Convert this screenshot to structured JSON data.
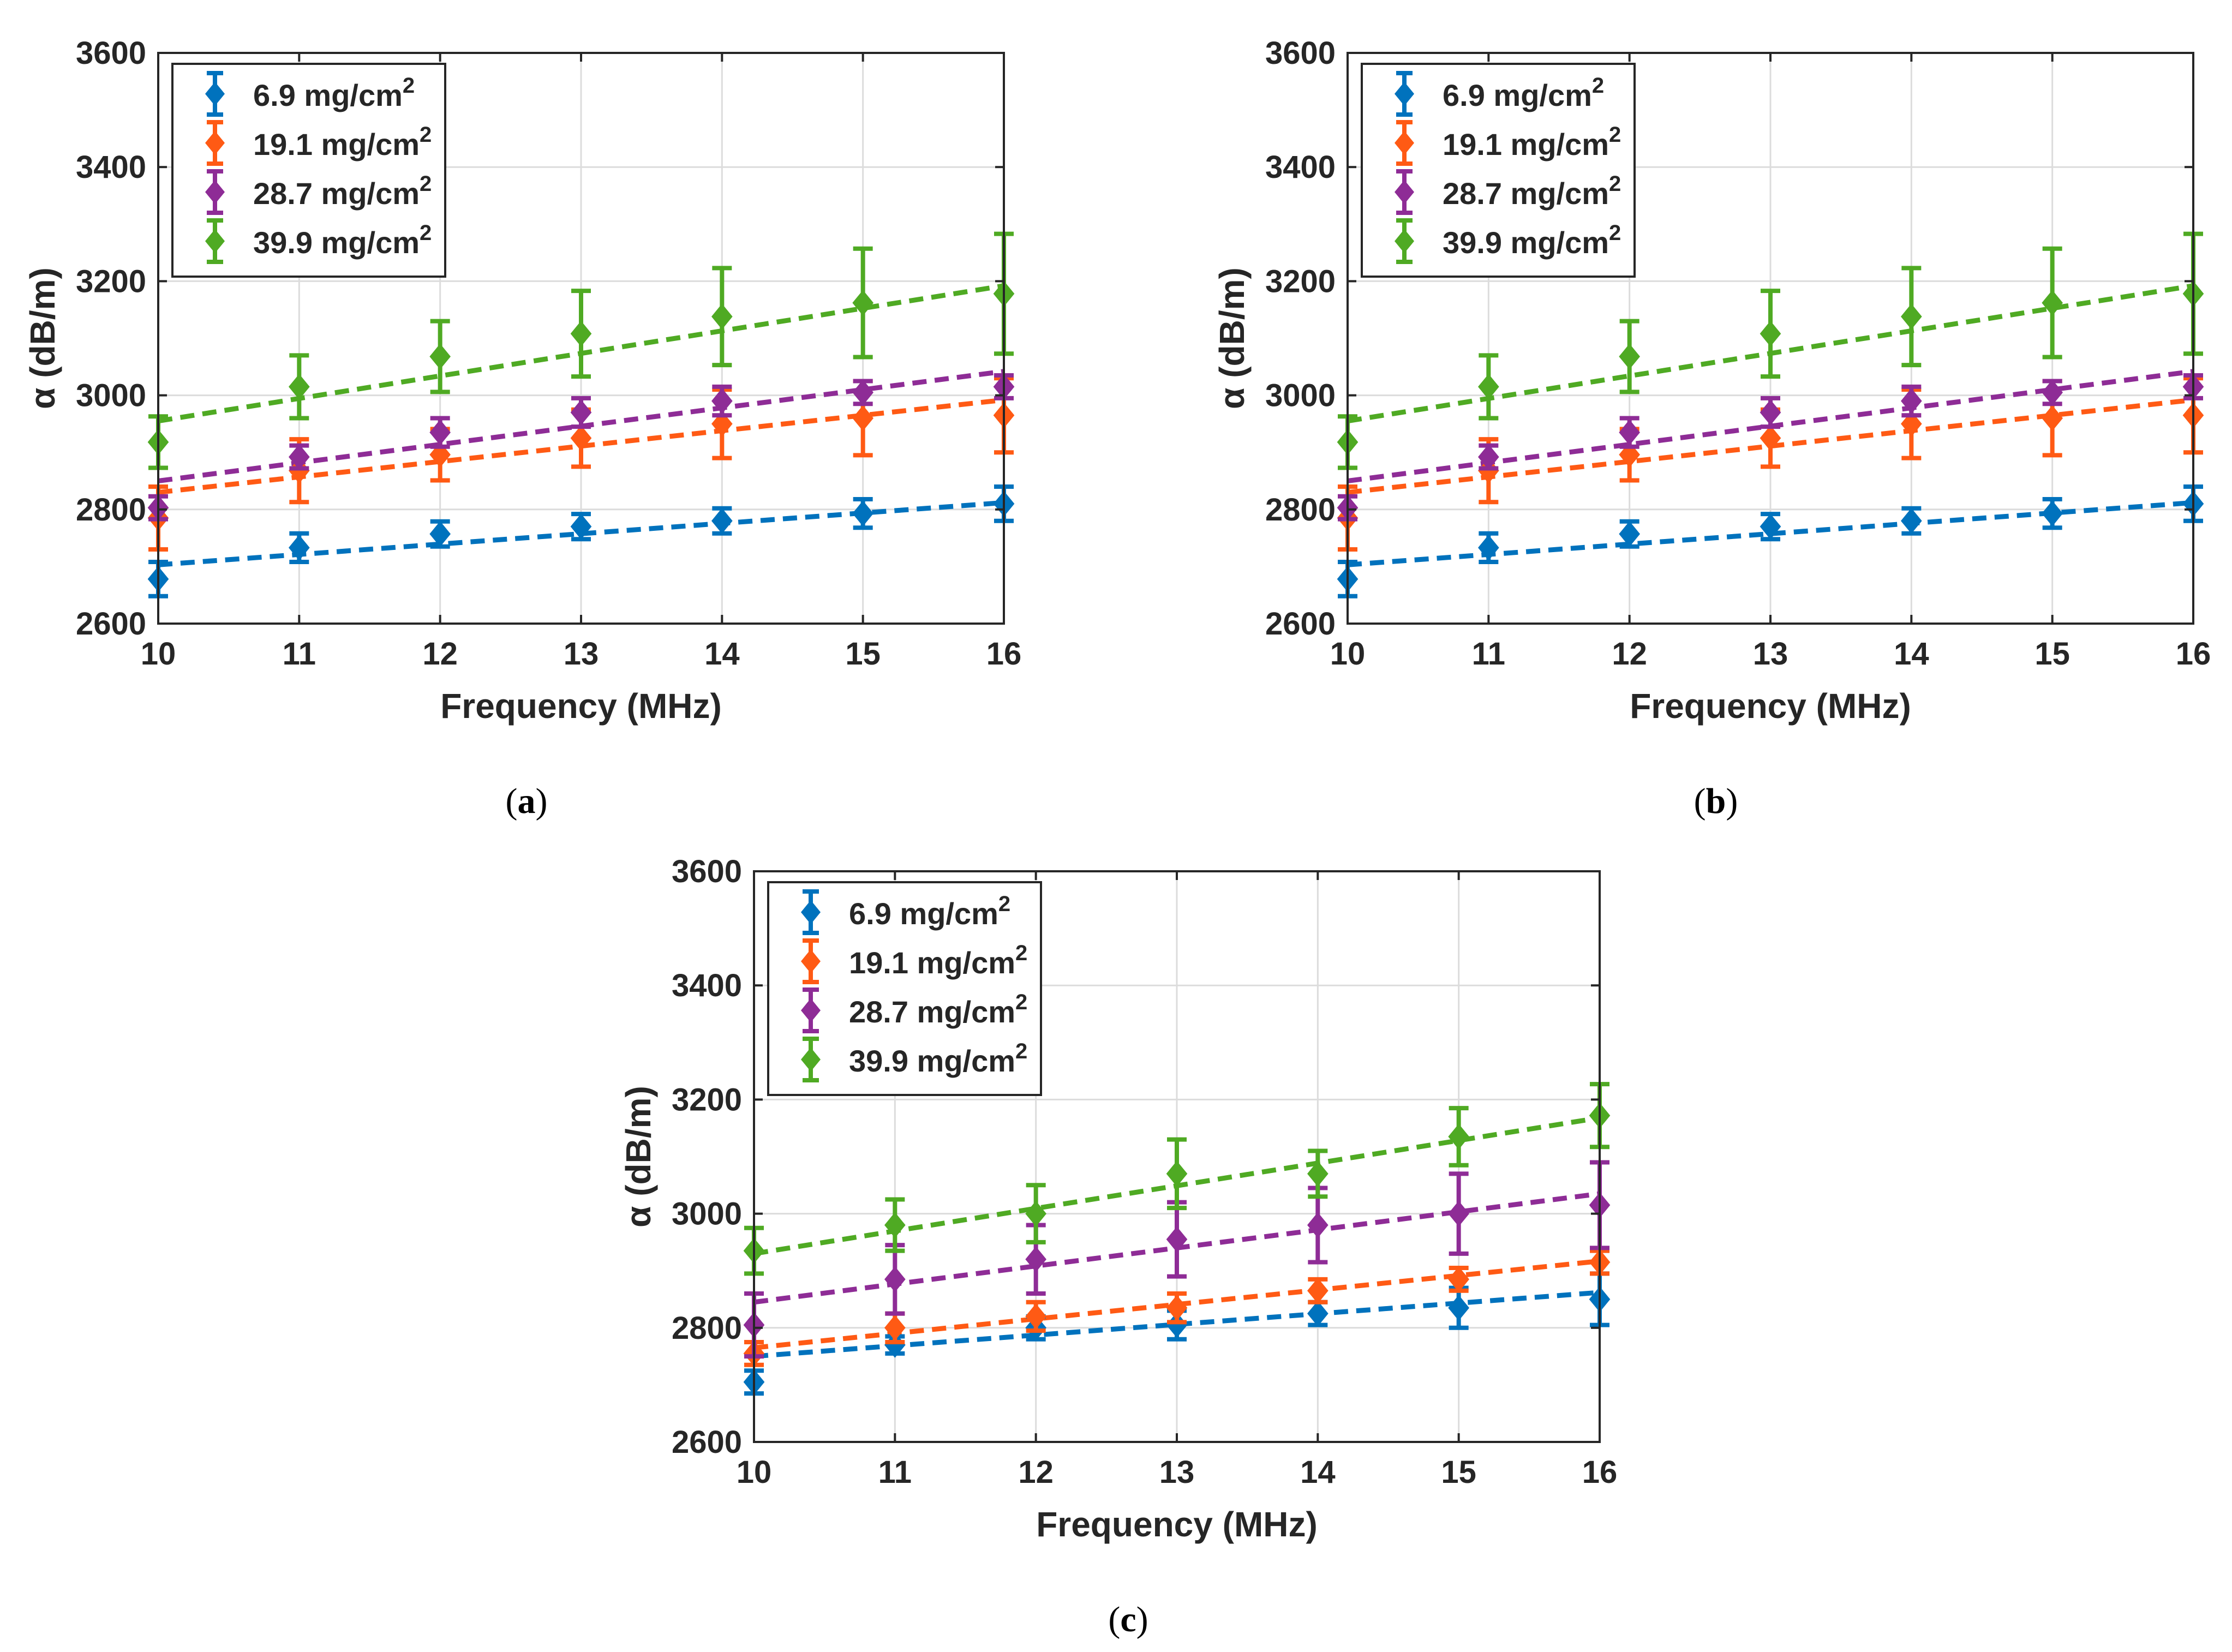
{
  "figure": {
    "captions": [
      "(a)",
      "(b)",
      "(c)"
    ]
  },
  "chart_data": [
    {
      "panel": "a",
      "type": "scatter",
      "title": "",
      "xlabel": "Frequency (MHz)",
      "ylabel": "α (dB/m)",
      "xlim": [
        10,
        16
      ],
      "ylim": [
        2600,
        3600
      ],
      "xticks": [
        "10",
        "11",
        "12",
        "13",
        "14",
        "15",
        "16"
      ],
      "yticks": [
        "2600",
        "2800",
        "3000",
        "3200",
        "3400",
        "3600"
      ],
      "grid": true,
      "legend_position": "top-left",
      "x": [
        10,
        11,
        12,
        13,
        14,
        15,
        16
      ],
      "series": [
        {
          "name": "6.9 mg/cm",
          "sup": "2",
          "color": "#0072BD",
          "values": [
            2678,
            2733,
            2757,
            2770,
            2780,
            2793,
            2810
          ],
          "errors": [
            30,
            25,
            22,
            22,
            22,
            25,
            30
          ],
          "fit": [
            2703,
            2812
          ]
        },
        {
          "name": "19.1 mg/cm",
          "sup": "2",
          "color": "#FF5A14",
          "values": [
            2785,
            2868,
            2896,
            2925,
            2950,
            2960,
            2965
          ],
          "errors": [
            55,
            55,
            45,
            50,
            60,
            65,
            65
          ],
          "fit": [
            2830,
            2992
          ]
        },
        {
          "name": "28.7 mg/cm",
          "sup": "2",
          "color": "#8E2C96",
          "values": [
            2803,
            2892,
            2935,
            2970,
            2990,
            3005,
            3015
          ],
          "errors": [
            20,
            20,
            25,
            25,
            25,
            20,
            20
          ],
          "fit": [
            2850,
            3042
          ]
        },
        {
          "name": "39.9 mg/cm",
          "sup": "2",
          "color": "#4FAA23",
          "values": [
            2918,
            3015,
            3068,
            3108,
            3138,
            3162,
            3178
          ],
          "errors": [
            45,
            55,
            62,
            75,
            85,
            95,
            105
          ],
          "fit": [
            2955,
            3192
          ]
        }
      ]
    },
    {
      "panel": "b",
      "type": "scatter",
      "title": "",
      "xlabel": "Frequency (MHz)",
      "ylabel": "α (dB/m)",
      "xlim": [
        10,
        16
      ],
      "ylim": [
        2600,
        3600
      ],
      "xticks": [
        "10",
        "11",
        "12",
        "13",
        "14",
        "15",
        "16"
      ],
      "yticks": [
        "2600",
        "2800",
        "3000",
        "3200",
        "3400",
        "3600"
      ],
      "grid": true,
      "legend_position": "top-left",
      "x": [
        10,
        11,
        12,
        13,
        14,
        15,
        16
      ],
      "series": [
        {
          "name": "6.9 mg/cm",
          "sup": "2",
          "color": "#0072BD",
          "values": [
            2678,
            2733,
            2757,
            2770,
            2780,
            2793,
            2810
          ],
          "errors": [
            30,
            25,
            22,
            22,
            22,
            25,
            30
          ],
          "fit": [
            2703,
            2812
          ]
        },
        {
          "name": "19.1 mg/cm",
          "sup": "2",
          "color": "#FF5A14",
          "values": [
            2785,
            2868,
            2896,
            2925,
            2950,
            2960,
            2965
          ],
          "errors": [
            55,
            55,
            45,
            50,
            60,
            65,
            65
          ],
          "fit": [
            2830,
            2992
          ]
        },
        {
          "name": "28.7 mg/cm",
          "sup": "2",
          "color": "#8E2C96",
          "values": [
            2803,
            2892,
            2935,
            2970,
            2990,
            3005,
            3015
          ],
          "errors": [
            20,
            20,
            25,
            25,
            25,
            20,
            20
          ],
          "fit": [
            2850,
            3042
          ]
        },
        {
          "name": "39.9 mg/cm",
          "sup": "2",
          "color": "#4FAA23",
          "values": [
            2918,
            3015,
            3068,
            3108,
            3138,
            3162,
            3178
          ],
          "errors": [
            45,
            55,
            62,
            75,
            85,
            95,
            105
          ],
          "fit": [
            2955,
            3192
          ]
        }
      ]
    },
    {
      "panel": "c",
      "type": "scatter",
      "title": "",
      "xlabel": "Frequency (MHz)",
      "ylabel": "α (dB/m)",
      "xlim": [
        10,
        16
      ],
      "ylim": [
        2600,
        3600
      ],
      "xticks": [
        "10",
        "11",
        "12",
        "13",
        "14",
        "15",
        "16"
      ],
      "yticks": [
        "2600",
        "2800",
        "3000",
        "3200",
        "3400",
        "3600"
      ],
      "grid": true,
      "legend_position": "top-left",
      "x": [
        10,
        11,
        12,
        13,
        14,
        15,
        16
      ],
      "series": [
        {
          "name": "6.9 mg/cm",
          "sup": "2",
          "color": "#0072BD",
          "values": [
            2705,
            2770,
            2800,
            2805,
            2825,
            2835,
            2850
          ],
          "errors": [
            20,
            15,
            20,
            25,
            20,
            35,
            45
          ],
          "fit": [
            2750,
            2862
          ]
        },
        {
          "name": "19.1 mg/cm",
          "sup": "2",
          "color": "#FF5A14",
          "values": [
            2755,
            2800,
            2820,
            2835,
            2865,
            2885,
            2915
          ],
          "errors": [
            20,
            25,
            25,
            25,
            20,
            20,
            20
          ],
          "fit": [
            2765,
            2917
          ]
        },
        {
          "name": "28.7 mg/cm",
          "sup": "2",
          "color": "#8E2C96",
          "values": [
            2805,
            2885,
            2920,
            2955,
            2980,
            3000,
            3015
          ],
          "errors": [
            55,
            60,
            60,
            65,
            65,
            70,
            75
          ],
          "fit": [
            2845,
            3035
          ]
        },
        {
          "name": "39.9 mg/cm",
          "sup": "2",
          "color": "#4FAA23",
          "values": [
            2935,
            2980,
            3000,
            3070,
            3070,
            3135,
            3172
          ],
          "errors": [
            40,
            45,
            50,
            60,
            40,
            50,
            55
          ],
          "fit": [
            2930,
            3168
          ]
        }
      ]
    }
  ]
}
